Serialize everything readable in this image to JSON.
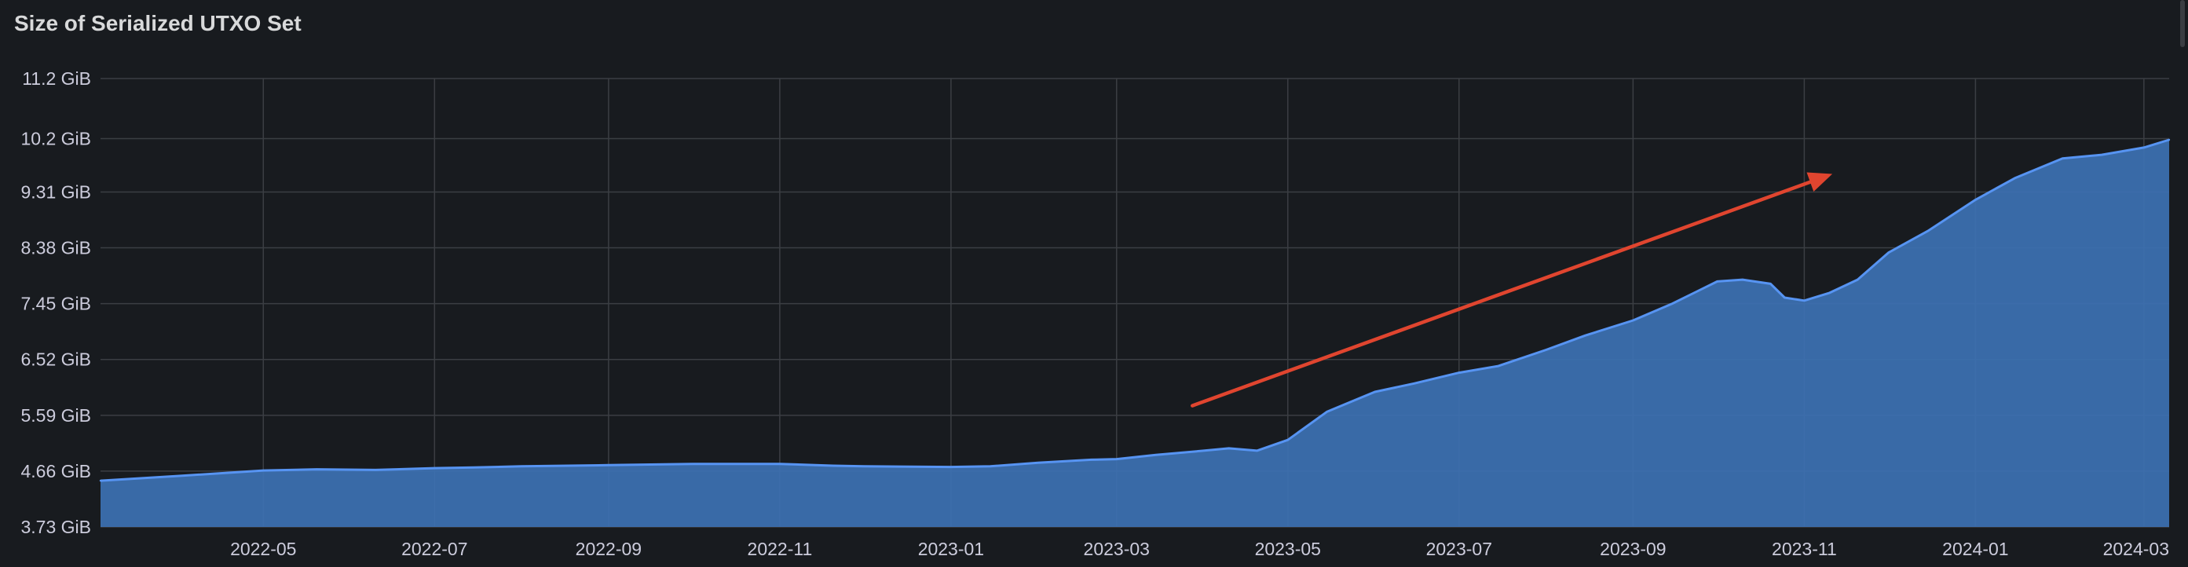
{
  "panel": {
    "title": "Size of Serialized UTXO Set"
  },
  "colors": {
    "background": "#181b1f",
    "grid": "#3b3e43",
    "series_line": "#5794f2",
    "series_fill": "#3d71b3",
    "arrow": "#e0452f",
    "text": "#ccccdc"
  },
  "chart_data": {
    "type": "area",
    "title": "Size of Serialized UTXO Set",
    "xlabel": "",
    "ylabel": "",
    "grid": true,
    "legend": "none",
    "x_ticks": [
      "2022-05",
      "2022-07",
      "2022-09",
      "2022-11",
      "2023-01",
      "2023-03",
      "2023-05",
      "2023-07",
      "2023-09",
      "2023-11",
      "2024-01",
      "2024-03"
    ],
    "y_ticks": [
      "3.73 GiB",
      "4.66 GiB",
      "5.59 GiB",
      "6.52 GiB",
      "7.45 GiB",
      "8.38 GiB",
      "9.31 GiB",
      "10.2 GiB",
      "11.2 GiB"
    ],
    "y_unit": "GiB",
    "ylim": [
      3.73,
      11.2
    ],
    "xlim": [
      "2022-03-04",
      "2024-03-10"
    ],
    "series": [
      {
        "x": [
          "2022-03-04",
          "2022-04-01",
          "2022-05-01",
          "2022-05-20",
          "2022-06-10",
          "2022-07-01",
          "2022-07-15",
          "2022-08-01",
          "2022-09-01",
          "2022-10-01",
          "2022-11-01",
          "2022-11-20",
          "2022-12-01",
          "2023-01-01",
          "2023-01-15",
          "2023-02-01",
          "2023-02-20",
          "2023-03-01",
          "2023-03-15",
          "2023-04-01",
          "2023-04-10",
          "2023-04-20",
          "2023-05-01",
          "2023-05-15",
          "2023-06-01",
          "2023-06-15",
          "2023-07-01",
          "2023-07-15",
          "2023-08-01",
          "2023-08-15",
          "2023-09-01",
          "2023-09-15",
          "2023-10-01",
          "2023-10-10",
          "2023-10-20",
          "2023-10-25",
          "2023-11-01",
          "2023-11-10",
          "2023-11-20",
          "2023-12-01",
          "2023-12-15",
          "2024-01-01",
          "2024-01-15",
          "2024-02-01",
          "2024-02-15",
          "2024-03-01",
          "2024-03-10"
        ],
        "values": [
          4.5,
          4.58,
          4.67,
          4.69,
          4.68,
          4.71,
          4.72,
          4.74,
          4.76,
          4.78,
          4.78,
          4.75,
          4.74,
          4.73,
          4.74,
          4.8,
          4.85,
          4.86,
          4.93,
          5.0,
          5.04,
          5.0,
          5.18,
          5.65,
          5.98,
          6.12,
          6.3,
          6.41,
          6.68,
          6.92,
          7.17,
          7.45,
          7.82,
          7.85,
          7.78,
          7.55,
          7.5,
          7.63,
          7.85,
          8.3,
          8.66,
          9.18,
          9.54,
          9.87,
          9.93,
          10.05,
          10.18
        ]
      }
    ],
    "annotation": {
      "type": "arrow",
      "from": [
        "2023-03-28",
        5.75
      ],
      "to": [
        "2023-11-11",
        9.61
      ]
    }
  }
}
